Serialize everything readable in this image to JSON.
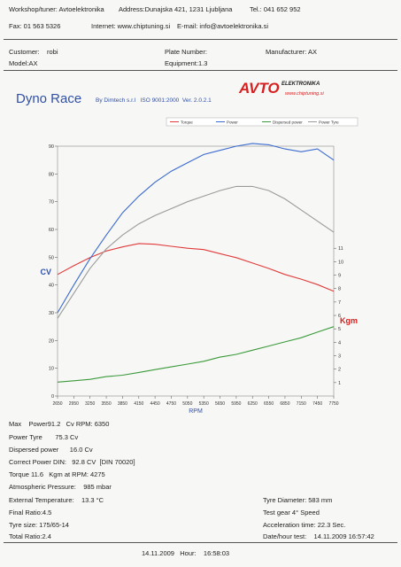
{
  "header": {
    "workshop": "Workshop/tuner: Avtoelektronika",
    "address": "Address:Dunajska 421, 1231 Ljubljana",
    "tel": "Tel.: 041 652 952",
    "fax": "Fax: 01 563 5326",
    "internet": "Internet: www.chiptuning.si",
    "email": "E-mail: info@avtoelektronika.si"
  },
  "vehicle": {
    "customer_label": "Customer:",
    "customer": "robi",
    "plate": "Plate Number:",
    "manufacturer": "Manufacturer: AX",
    "model": "Model:AX",
    "equipment": "Equipment:1.3"
  },
  "report": {
    "title": "Dyno Race",
    "subtitle": "By Dimtech s.r.l   ISO 9001:2000  Ver. 2.0.2.1",
    "logo": "AVTO",
    "logo_small": "ELEKTRONIKA",
    "logo_url": "www.chiptuning.si"
  },
  "chart_data": {
    "type": "line",
    "xlabel": "RPM",
    "ylabel": "CV",
    "y2label": "Kgm",
    "x": [
      2650,
      2950,
      3250,
      3550,
      3850,
      4150,
      4450,
      4750,
      5050,
      5350,
      5650,
      5950,
      6250,
      6550,
      6850,
      7150,
      7450,
      7750
    ],
    "xlim": [
      2650,
      7750
    ],
    "xticks": [
      2650,
      2950,
      3250,
      3550,
      3850,
      4150,
      4450,
      4750,
      5050,
      5350,
      5650,
      5950,
      6250,
      6550,
      6850,
      7150,
      7450,
      7750
    ],
    "ylim": [
      0,
      90
    ],
    "yticks": [
      0,
      10,
      20,
      30,
      40,
      50,
      60,
      70,
      80,
      90
    ],
    "y2lim": [
      0,
      18.6
    ],
    "y2ticks": [
      1,
      2,
      3,
      4,
      5,
      6,
      7,
      8,
      9,
      10,
      11
    ],
    "series": [
      {
        "name": "Torque",
        "color": "#e03a3a",
        "axis": "y2",
        "values": [
          9.05,
          9.7,
          10.3,
          10.8,
          11.1,
          11.35,
          11.3,
          11.15,
          11.0,
          10.9,
          10.6,
          10.3,
          9.9,
          9.5,
          9.05,
          8.7,
          8.3,
          7.8
        ]
      },
      {
        "name": "Power",
        "color": "#3a6ad0",
        "values": [
          30,
          40,
          49.5,
          58,
          66,
          72,
          77,
          81,
          84,
          87,
          88.5,
          90,
          91,
          90.5,
          89,
          88,
          89,
          85
        ]
      },
      {
        "name": "Dispersed power",
        "color": "#3a9a3a",
        "values": [
          5,
          5.5,
          6,
          7,
          7.5,
          8.5,
          9.5,
          10.5,
          11.5,
          12.5,
          14,
          15,
          16.5,
          18,
          19.5,
          21,
          23,
          25
        ]
      },
      {
        "name": "Power Tyre",
        "color": "#9a9a9a",
        "values": [
          28,
          37,
          46,
          53,
          58,
          62,
          65,
          67.5,
          70,
          72,
          74,
          75.5,
          75.5,
          74,
          71,
          67,
          63,
          59
        ]
      }
    ]
  },
  "results": {
    "left": [
      "Max    Power91.2   Cv RPM: 6350",
      "Power Tyre       75.3 Cv",
      "Dispersed power      16.0 Cv",
      "Correct Power DIN:   92.8 CV  [DIN 70020]",
      "Torque 11.6   Kgm at RPM: 4275",
      "Atmospheric Pressure:    985 mbar",
      "External Temperature:    13.3 °C",
      "Final Ratio:4.5",
      "Tyre size: 175/65-14",
      "Total Ratio:2.4"
    ],
    "right": [
      "Tyre Diameter: 583 mm",
      "Test gear 4° Speed",
      "Acceleration time: 22.3 Sec.",
      "Date/hour test:    14.11.2009 16:57:42"
    ]
  },
  "footer": "14.11.2009   Hour:    16:58:03"
}
